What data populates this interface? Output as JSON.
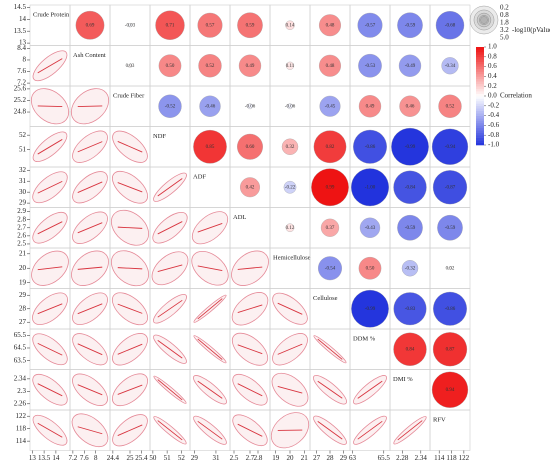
{
  "chart_data": {
    "type": "correlation-matrix",
    "variables": [
      {
        "name": "Crude Protein",
        "lim": [
          12.9,
          14.6
        ],
        "xticks": [
          13,
          13.5,
          14
        ],
        "yticks": [
          13,
          13.5,
          14,
          14.5
        ]
      },
      {
        "name": "Ash Content",
        "lim": [
          7.1,
          8.5
        ],
        "xticks": [
          7.2,
          7.6,
          8
        ],
        "yticks": [
          7.2,
          7.6,
          8,
          8.4
        ]
      },
      {
        "name": "Crude Fiber",
        "lim": [
          24.3,
          25.7
        ],
        "xticks": [
          24.4,
          25,
          25.4
        ],
        "yticks": [
          24.8,
          25.2,
          25.6
        ]
      },
      {
        "name": "NDF",
        "lim": [
          49.8,
          52.6
        ],
        "xticks": [
          50,
          51,
          52
        ],
        "yticks": [
          51,
          52
        ]
      },
      {
        "name": "ADF",
        "lim": [
          28.6,
          32.3
        ],
        "xticks": [
          29,
          31
        ],
        "yticks": [
          29,
          30,
          31,
          32
        ]
      },
      {
        "name": "ADL",
        "lim": [
          2.45,
          2.95
        ],
        "xticks": [
          2.5,
          2.7,
          2.8
        ],
        "yticks": [
          2.5,
          2.6,
          2.7,
          2.8,
          2.9
        ]
      },
      {
        "name": "Hemicellulose",
        "lim": [
          18.6,
          21.4
        ],
        "xticks": [
          19,
          20,
          21
        ],
        "yticks": [
          19,
          20,
          21
        ]
      },
      {
        "name": "Cellulose",
        "lim": [
          26.5,
          29.5
        ],
        "xticks": [
          27,
          28,
          29
        ],
        "yticks": [
          27,
          28,
          29
        ]
      },
      {
        "name": "DDM %",
        "lim": [
          62.8,
          66
        ],
        "xticks": [
          63,
          65.5
        ],
        "yticks": [
          63.5,
          64.5,
          65.5
        ]
      },
      {
        "name": "DMI %",
        "lim": [
          2.24,
          2.37
        ],
        "xticks": [
          2.28,
          2.34
        ],
        "yticks": [
          2.26,
          2.3,
          2.34
        ]
      },
      {
        "name": "RFV",
        "lim": [
          111,
          124
        ],
        "xticks": [
          114,
          118,
          122
        ],
        "yticks": [
          114,
          118,
          122
        ]
      }
    ],
    "correlations": [
      {
        "values": [
          0.69,
          -0.03,
          0.71,
          0.57,
          0.59,
          0.14,
          0.48,
          -0.57,
          -0.59,
          -0.68
        ],
        "value_labels": [
          "0.69",
          "-0.03",
          "0.71",
          "0.57",
          "0.59",
          "0.14",
          "0.48",
          "-0.57",
          "-0.59",
          "-0.68"
        ]
      },
      {
        "values": [
          0.03,
          0.5,
          0.52,
          0.49,
          0.11,
          0.48,
          -0.53,
          -0.49,
          -0.34
        ],
        "value_labels": [
          "0.03",
          "0.50",
          "0.52",
          "0.49",
          "0.11",
          "0.48",
          "-0.53",
          "-0.49",
          "-0.34"
        ]
      },
      {
        "values": [
          -0.52,
          -0.46,
          -0.06,
          -0.06,
          -0.45,
          0.49,
          0.46,
          0.52
        ],
        "value_labels": [
          "-0.52",
          "-0.46",
          "-0.06",
          "-0.06",
          "-0.45",
          "0.49",
          "0.46",
          "0.52"
        ]
      },
      {
        "values": [
          0.85,
          0.6,
          0.32,
          0.82,
          -0.86,
          -0.99,
          -0.94
        ],
        "value_labels": [
          "0.85",
          "0.60",
          "0.32",
          "0.82",
          "-0.86",
          "-0.99",
          "-0.94"
        ]
      },
      {
        "values": [
          0.42,
          -0.22,
          0.99,
          -1,
          -0.84,
          -0.87
        ],
        "value_labels": [
          "0.42",
          "-0.22",
          "0.99",
          "-1.00",
          "-0.84",
          "-0.87"
        ]
      },
      {
        "values": [
          0.12,
          0.37,
          -0.43,
          -0.59,
          -0.59
        ],
        "value_labels": [
          "0.12",
          "0.37",
          "-0.43",
          "-0.59",
          "-0.59"
        ]
      },
      {
        "values": [
          -0.54,
          0.5,
          -0.32,
          0.02
        ],
        "value_labels": [
          "-0.54",
          "0.50",
          "-0.32",
          "0.02"
        ]
      },
      {
        "values": [
          -0.99,
          -0.83,
          -0.86
        ],
        "value_labels": [
          "-0.99",
          "-0.83",
          "-0.86"
        ]
      },
      {
        "values": [
          0.84,
          0.87
        ],
        "value_labels": [
          "0.84",
          "0.87"
        ]
      },
      {
        "values": [
          0.94
        ],
        "value_labels": [
          "0.94"
        ]
      }
    ],
    "size_legend": {
      "title": "-log10(pValue)",
      "values": [
        0.2,
        0.8,
        1.8,
        3.2,
        {
          "value": 5,
          "label": "5.0"
        }
      ]
    },
    "colorbar": {
      "title": "Correlation",
      "lim": [
        -1,
        1
      ],
      "low_color": "#2233dd",
      "mid_color": "#ffffff",
      "high_color": "#ee1111",
      "ticks": [
        {
          "value": 1,
          "label": "1.0"
        },
        0.8,
        0.6,
        0.4,
        0.2,
        {
          "value": 0,
          "label": "0.0"
        },
        -0.2,
        -0.4,
        -0.6,
        -0.8,
        {
          "value": -1,
          "label": "-1.0"
        }
      ]
    }
  }
}
